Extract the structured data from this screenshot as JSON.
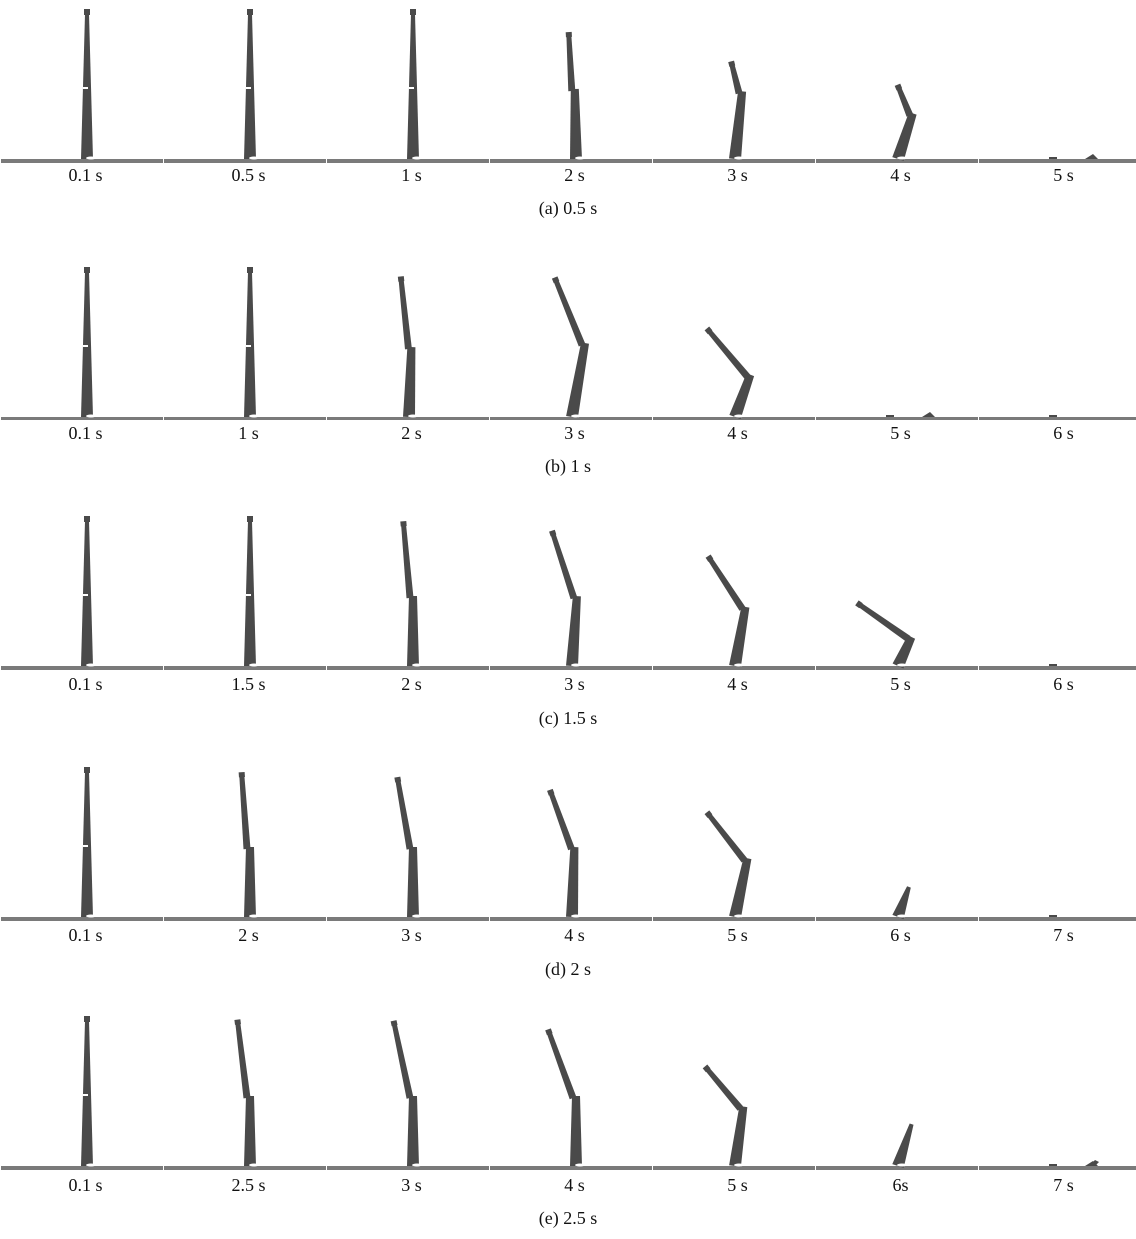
{
  "rows": [
    {
      "caption": "(a) 0.5 s",
      "labels": [
        "0.1 s",
        "0.5 s",
        "1 s",
        "2 s",
        "3 s",
        "4 s",
        "5 s"
      ]
    },
    {
      "caption": "(b) 1 s",
      "labels": [
        "0.1 s",
        "1 s",
        "2 s",
        "3 s",
        "4 s",
        "5 s",
        "6 s"
      ]
    },
    {
      "caption": "(c) 1.5 s",
      "labels": [
        "0.1 s",
        "1.5 s",
        "2 s",
        "3 s",
        "4 s",
        "5 s",
        "6 s"
      ]
    },
    {
      "caption": "(d) 2 s",
      "labels": [
        "0.1 s",
        "2 s",
        "3 s",
        "4 s",
        "5 s",
        "6 s",
        "7 s"
      ]
    },
    {
      "caption": "(e) 2.5 s",
      "labels": [
        "0.1 s",
        "2.5 s",
        "3 s",
        "4 s",
        "5 s",
        "6s",
        "7 s"
      ]
    }
  ],
  "colors": {
    "chimney": "#4a4a4a",
    "ground": "#7a7a7a",
    "highlight": "#ffffff"
  }
}
